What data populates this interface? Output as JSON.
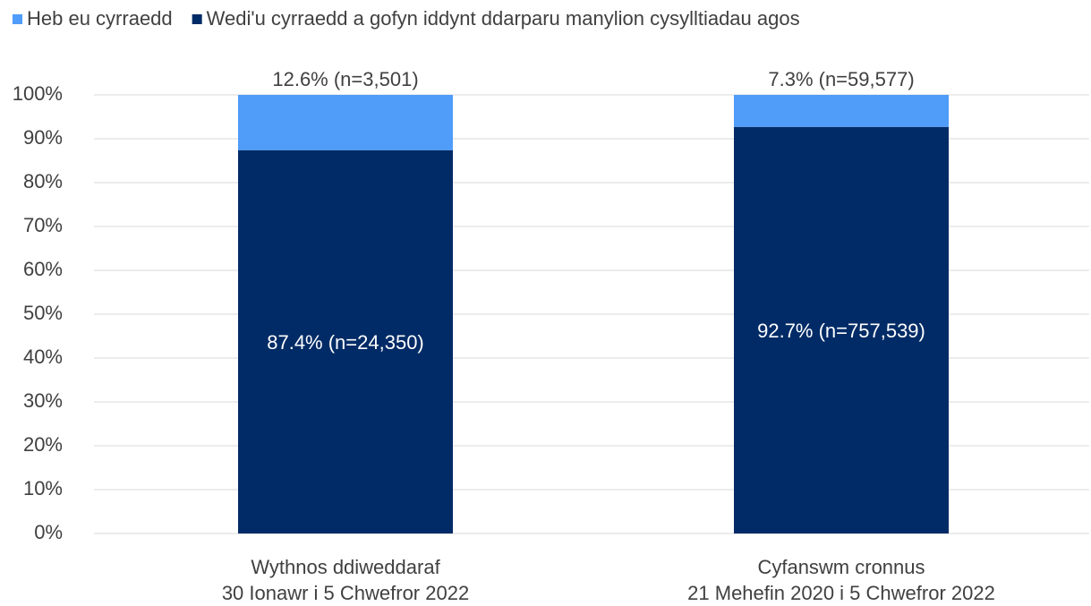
{
  "chart_data": {
    "type": "stacked-bar",
    "categories": [
      [
        "Wythnos ddiweddaraf",
        "30 Ionawr i 5 Chwefror 2022"
      ],
      [
        "Cyfanswm cronnus",
        "21 Mehefin 2020 i 5 Chwefror 2022"
      ]
    ],
    "series": [
      {
        "name": "Wedi'u cyrraedd a gofyn iddynt ddarparu manylion cysylltiadau agos",
        "color": "#002b66",
        "values": [
          87.4,
          92.7
        ],
        "value_labels": [
          "87.4% (n=24,350)",
          "92.7% (n=757,539)"
        ]
      },
      {
        "name": "Heb eu cyrraedd",
        "color": "#4f9cf9",
        "values": [
          12.6,
          7.3
        ],
        "value_labels": [
          "12.6% (n=3,501)",
          "7.3% (n=59,577)"
        ]
      }
    ],
    "ylim": [
      0,
      100
    ],
    "yticks": [
      {
        "value": 0,
        "label": "0%"
      },
      {
        "value": 10,
        "label": "10%"
      },
      {
        "value": 20,
        "label": "20%"
      },
      {
        "value": 30,
        "label": "30%"
      },
      {
        "value": 40,
        "label": "40%"
      },
      {
        "value": 50,
        "label": "50%"
      },
      {
        "value": 60,
        "label": "60%"
      },
      {
        "value": 70,
        "label": "70%"
      },
      {
        "value": 80,
        "label": "80%"
      },
      {
        "value": 90,
        "label": "90%"
      },
      {
        "value": 100,
        "label": "100%"
      }
    ],
    "grid": true
  }
}
